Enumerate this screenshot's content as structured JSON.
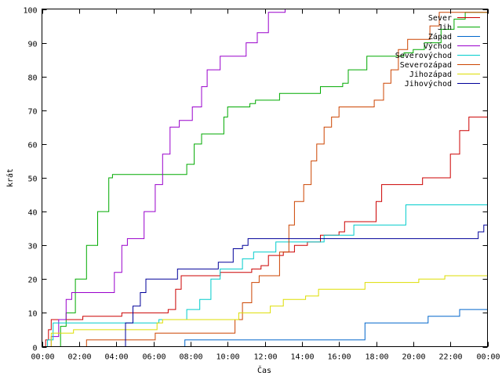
{
  "chart_data": {
    "type": "line",
    "step": true,
    "title": "",
    "xlabel": "Čas",
    "ylabel": "krát",
    "xlim": [
      0,
      24
    ],
    "ylim": [
      0,
      100
    ],
    "x_ticks": [
      {
        "value": 0,
        "label": "00:00"
      },
      {
        "value": 2,
        "label": "02:00"
      },
      {
        "value": 4,
        "label": "04:00"
      },
      {
        "value": 6,
        "label": "06:00"
      },
      {
        "value": 8,
        "label": "08:00"
      },
      {
        "value": 10,
        "label": "10:00"
      },
      {
        "value": 12,
        "label": "12:00"
      },
      {
        "value": 14,
        "label": "14:00"
      },
      {
        "value": 16,
        "label": "16:00"
      },
      {
        "value": 18,
        "label": "18:00"
      },
      {
        "value": 20,
        "label": "20:00"
      },
      {
        "value": 22,
        "label": "22:00"
      },
      {
        "value": 24,
        "label": "00:00"
      }
    ],
    "y_ticks": [
      0,
      10,
      20,
      30,
      40,
      50,
      60,
      70,
      80,
      90,
      100
    ],
    "grid": false,
    "legend_position": "top-right",
    "series": [
      {
        "name": "Sever",
        "color": "#cc0000",
        "points": [
          [
            0,
            0
          ],
          [
            0.2,
            2
          ],
          [
            0.35,
            5
          ],
          [
            0.5,
            8
          ],
          [
            1,
            8
          ],
          [
            2.2,
            9
          ],
          [
            3.5,
            9
          ],
          [
            4.3,
            10
          ],
          [
            5.5,
            10
          ],
          [
            6.8,
            11
          ],
          [
            7.2,
            17
          ],
          [
            7.5,
            21
          ],
          [
            9,
            21
          ],
          [
            9.6,
            22
          ],
          [
            10.6,
            22
          ],
          [
            11.3,
            23
          ],
          [
            11.8,
            24
          ],
          [
            12.2,
            27
          ],
          [
            13,
            28
          ],
          [
            13.6,
            30
          ],
          [
            14.3,
            31
          ],
          [
            15,
            33
          ],
          [
            16,
            34
          ],
          [
            16.3,
            37
          ],
          [
            17.5,
            37
          ],
          [
            18,
            43
          ],
          [
            18.3,
            48
          ],
          [
            20,
            48
          ],
          [
            20.5,
            50
          ],
          [
            21.6,
            50
          ],
          [
            22,
            57
          ],
          [
            22.5,
            64
          ],
          [
            23,
            68
          ],
          [
            23.8,
            68
          ],
          [
            24,
            70
          ]
        ]
      },
      {
        "name": "Jih",
        "color": "#00aa00",
        "points": [
          [
            0,
            0
          ],
          [
            0.8,
            0
          ],
          [
            1,
            6
          ],
          [
            1.3,
            10
          ],
          [
            1.8,
            20
          ],
          [
            2.4,
            30
          ],
          [
            3,
            40
          ],
          [
            3.6,
            50
          ],
          [
            3.8,
            51
          ],
          [
            7.6,
            51
          ],
          [
            7.8,
            54
          ],
          [
            8.2,
            60
          ],
          [
            8.6,
            63
          ],
          [
            9.4,
            63
          ],
          [
            9.8,
            68
          ],
          [
            10,
            71
          ],
          [
            11.2,
            72
          ],
          [
            11.5,
            73
          ],
          [
            12,
            73
          ],
          [
            12.8,
            75
          ],
          [
            14.8,
            75
          ],
          [
            15,
            77
          ],
          [
            16.2,
            78
          ],
          [
            16.5,
            82
          ],
          [
            17.2,
            82
          ],
          [
            17.5,
            86
          ],
          [
            19,
            86
          ],
          [
            19.5,
            87
          ],
          [
            20,
            88
          ],
          [
            20.6,
            90
          ],
          [
            21.5,
            94
          ],
          [
            22.2,
            97
          ],
          [
            22.8,
            99
          ],
          [
            24,
            100
          ]
        ]
      },
      {
        "name": "Západ",
        "color": "#0066cc",
        "points": [
          [
            0,
            0
          ],
          [
            7.6,
            0
          ],
          [
            7.7,
            2
          ],
          [
            17.2,
            2
          ],
          [
            17.4,
            7
          ],
          [
            20.5,
            7
          ],
          [
            20.8,
            9
          ],
          [
            22.3,
            9
          ],
          [
            22.5,
            11
          ],
          [
            24,
            11
          ]
        ]
      },
      {
        "name": "Východ",
        "color": "#9900cc",
        "points": [
          [
            0,
            0
          ],
          [
            0.5,
            3
          ],
          [
            0.9,
            8
          ],
          [
            1.3,
            14
          ],
          [
            1.6,
            16
          ],
          [
            3.6,
            16
          ],
          [
            3.9,
            22
          ],
          [
            4.3,
            30
          ],
          [
            4.6,
            32
          ],
          [
            5.1,
            32
          ],
          [
            5.5,
            40
          ],
          [
            6.1,
            48
          ],
          [
            6.5,
            57
          ],
          [
            6.9,
            65
          ],
          [
            7.4,
            67
          ],
          [
            7.8,
            67
          ],
          [
            8.1,
            71
          ],
          [
            8.6,
            77
          ],
          [
            8.9,
            82
          ],
          [
            9.4,
            82
          ],
          [
            9.6,
            86
          ],
          [
            10.8,
            86
          ],
          [
            11,
            90
          ],
          [
            11.6,
            93
          ],
          [
            12.2,
            99
          ],
          [
            12.9,
            99
          ],
          [
            13.1,
            100
          ]
        ]
      },
      {
        "name": "Severovýchod",
        "color": "#00cccc",
        "points": [
          [
            0,
            0
          ],
          [
            0.3,
            2
          ],
          [
            0.6,
            7
          ],
          [
            6,
            7
          ],
          [
            6.3,
            8
          ],
          [
            7.4,
            8
          ],
          [
            7.8,
            11
          ],
          [
            8.5,
            14
          ],
          [
            9.1,
            20
          ],
          [
            9.6,
            23
          ],
          [
            10.3,
            23
          ],
          [
            10.8,
            26
          ],
          [
            11.4,
            28
          ],
          [
            12.2,
            28
          ],
          [
            12.6,
            31
          ],
          [
            15,
            31
          ],
          [
            15.2,
            33
          ],
          [
            16.2,
            33
          ],
          [
            16.8,
            36
          ],
          [
            19.2,
            36
          ],
          [
            19.6,
            42
          ],
          [
            24,
            42
          ]
        ]
      },
      {
        "name": "Severozápad",
        "color": "#cc4400",
        "points": [
          [
            0,
            0
          ],
          [
            2.4,
            2
          ],
          [
            5.9,
            2
          ],
          [
            6.1,
            4
          ],
          [
            10.2,
            4
          ],
          [
            10.4,
            8
          ],
          [
            10.8,
            13
          ],
          [
            11.3,
            19
          ],
          [
            11.7,
            21
          ],
          [
            12.3,
            21
          ],
          [
            12.8,
            28
          ],
          [
            13.3,
            36
          ],
          [
            13.6,
            43
          ],
          [
            14.1,
            48
          ],
          [
            14.5,
            55
          ],
          [
            14.8,
            60
          ],
          [
            15.2,
            65
          ],
          [
            15.6,
            68
          ],
          [
            16,
            71
          ],
          [
            17.5,
            71
          ],
          [
            17.9,
            73
          ],
          [
            18.4,
            78
          ],
          [
            18.8,
            82
          ],
          [
            19.2,
            88
          ],
          [
            19.7,
            91
          ],
          [
            20.6,
            91
          ],
          [
            20.9,
            95
          ],
          [
            21.4,
            99
          ],
          [
            24,
            100
          ]
        ]
      },
      {
        "name": "Jihozápad",
        "color": "#dddd00",
        "points": [
          [
            0,
            0
          ],
          [
            0.3,
            0
          ],
          [
            0.5,
            4
          ],
          [
            1.6,
            4
          ],
          [
            1.7,
            5
          ],
          [
            6,
            5
          ],
          [
            6.2,
            7
          ],
          [
            6.5,
            8
          ],
          [
            10.3,
            8
          ],
          [
            10.6,
            10
          ],
          [
            11.8,
            10
          ],
          [
            12.3,
            12
          ],
          [
            13,
            14
          ],
          [
            14,
            14
          ],
          [
            14.2,
            15
          ],
          [
            14.9,
            17
          ],
          [
            17.2,
            17
          ],
          [
            17.4,
            19
          ],
          [
            20.1,
            19
          ],
          [
            20.3,
            20
          ],
          [
            21.4,
            20
          ],
          [
            21.7,
            21
          ],
          [
            24,
            21
          ]
        ]
      },
      {
        "name": "Jihovýchod",
        "color": "#000099",
        "points": [
          [
            0,
            0
          ],
          [
            4.3,
            0
          ],
          [
            4.5,
            7
          ],
          [
            4.9,
            12
          ],
          [
            5.3,
            16
          ],
          [
            5.6,
            20
          ],
          [
            7,
            20
          ],
          [
            7.3,
            23
          ],
          [
            9.3,
            23
          ],
          [
            9.5,
            25
          ],
          [
            10,
            25
          ],
          [
            10.3,
            29
          ],
          [
            10.8,
            30
          ],
          [
            11.1,
            32
          ],
          [
            23.3,
            32
          ],
          [
            23.5,
            34
          ],
          [
            23.8,
            36
          ],
          [
            24,
            38
          ]
        ]
      }
    ]
  }
}
